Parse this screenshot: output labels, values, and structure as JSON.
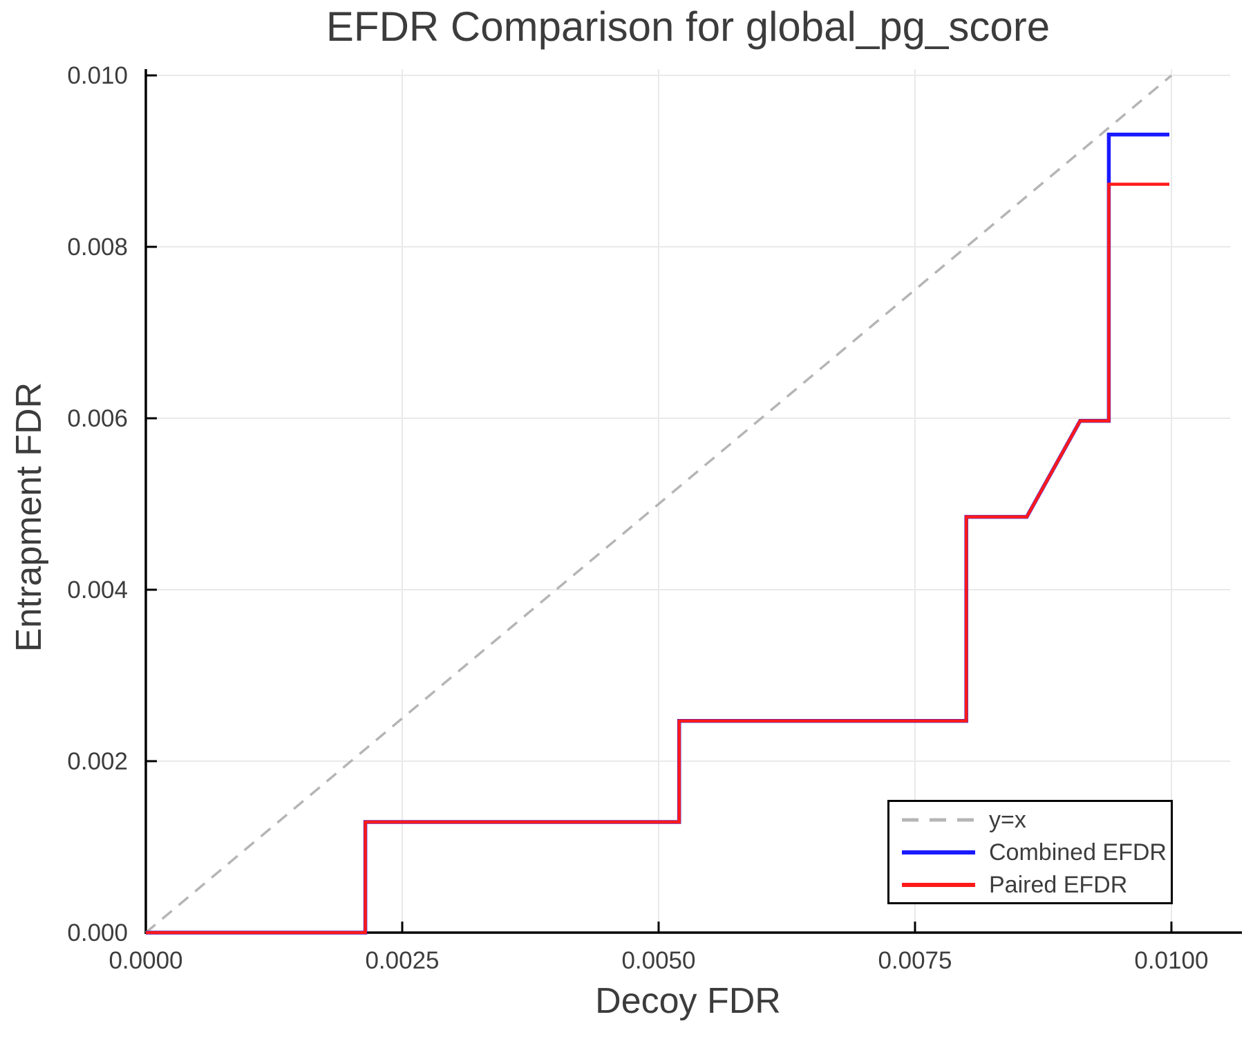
{
  "title": "EFDR Comparison for global_pg_score",
  "axes": {
    "x_label": "Decoy FDR",
    "y_label": "Entrapment FDR"
  },
  "legend": {
    "position": "lower right",
    "entries": [
      {
        "label": "y=x",
        "color": "#b5b5b5",
        "dash": true
      },
      {
        "label": "Combined EFDR",
        "color": "#1a1aff",
        "dash": false
      },
      {
        "label": "Paired EFDR",
        "color": "#ff1a1a",
        "dash": false
      }
    ]
  },
  "chart_data": {
    "type": "line",
    "title": "EFDR Comparison for global_pg_score",
    "xlabel": "Decoy FDR",
    "ylabel": "Entrapment FDR",
    "xlim": [
      0,
      0.010573
    ],
    "ylim": [
      0,
      0.010073
    ],
    "grid": true,
    "legend_position": "lower right",
    "x_ticks": {
      "values": [
        0,
        0.0025,
        0.005,
        0.0075,
        0.01
      ],
      "labels": [
        "0.0000",
        "0.0025",
        "0.0050",
        "0.0075",
        "0.0100"
      ]
    },
    "y_ticks": {
      "values": [
        0,
        0.002,
        0.004,
        0.006,
        0.008,
        0.01
      ],
      "labels": [
        "0.000",
        "0.002",
        "0.004",
        "0.006",
        "0.008",
        "0.010"
      ]
    },
    "series": [
      {
        "name": "y=x",
        "color": "#b5b5b5",
        "style": "dashed",
        "width": 3.5,
        "points": [
          [
            0,
            0
          ],
          [
            0.01,
            0.01
          ]
        ]
      },
      {
        "name": "Combined EFDR",
        "color": "#1a1aff",
        "style": "solid",
        "width": 5.5,
        "points": [
          [
            0.0,
            0.0
          ],
          [
            0.00214,
            0.0
          ],
          [
            0.00214,
            0.00129
          ],
          [
            0.0052,
            0.00129
          ],
          [
            0.0052,
            0.00247
          ],
          [
            0.008,
            0.00247
          ],
          [
            0.008,
            0.00485
          ],
          [
            0.00859,
            0.00485
          ],
          [
            0.00911,
            0.00597
          ],
          [
            0.00939,
            0.00597
          ],
          [
            0.00939,
            0.00931
          ],
          [
            0.00998,
            0.00931
          ]
        ]
      },
      {
        "name": "Paired EFDR",
        "color": "#ff1a1a",
        "style": "solid",
        "width": 4.5,
        "points": [
          [
            0.0,
            0.0
          ],
          [
            0.00214,
            0.0
          ],
          [
            0.00214,
            0.00129
          ],
          [
            0.0052,
            0.00129
          ],
          [
            0.0052,
            0.00247
          ],
          [
            0.008,
            0.00247
          ],
          [
            0.008,
            0.00485
          ],
          [
            0.00859,
            0.00485
          ],
          [
            0.00911,
            0.00597
          ],
          [
            0.00939,
            0.00597
          ],
          [
            0.00939,
            0.00873
          ],
          [
            0.00998,
            0.00873
          ]
        ]
      }
    ]
  }
}
